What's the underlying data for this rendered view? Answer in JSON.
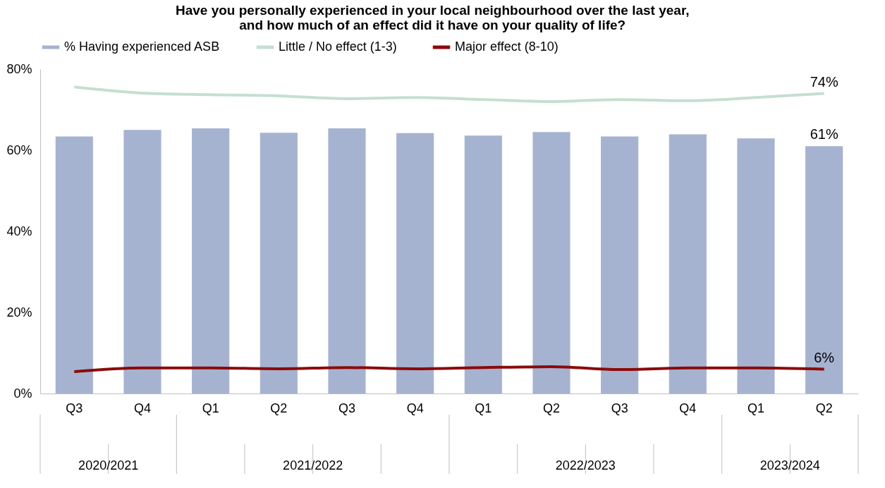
{
  "chart_data": {
    "type": "bar",
    "title": "Have you personally experienced in your local neighbourhood over the last year,\nand how much of an effect did it have on your quality of life?",
    "categories": [
      "Q3",
      "Q4",
      "Q1",
      "Q2",
      "Q3",
      "Q4",
      "Q1",
      "Q2",
      "Q3",
      "Q4",
      "Q1",
      "Q2"
    ],
    "annotations": [
      "2020/2021",
      "2021/2022",
      "2022/2023",
      "2023/2024"
    ],
    "series": [
      {
        "name": "% Having experienced ASB",
        "color": "#a6b3d0",
        "values": [
          63.4,
          65.0,
          65.4,
          64.3,
          65.4,
          64.2,
          63.6,
          64.5,
          63.4,
          63.9,
          62.9,
          61
        ],
        "value_labels": [
          null,
          null,
          null,
          null,
          null,
          null,
          null,
          null,
          null,
          null,
          null,
          "61%"
        ]
      },
      {
        "name": "Little / No effect (1-3)",
        "type": "line",
        "color": "#c5dfd0",
        "values": [
          75.6,
          74.1,
          73.7,
          73.4,
          72.7,
          73.0,
          72.5,
          72.0,
          72.5,
          72.2,
          73.0,
          74
        ],
        "value_labels": [
          null,
          null,
          null,
          null,
          null,
          null,
          null,
          null,
          null,
          null,
          null,
          "74%"
        ]
      },
      {
        "name": "Major effect (8-10)",
        "type": "line",
        "color": "#8b0a0a",
        "values": [
          5.4,
          6.3,
          6.3,
          6.1,
          6.4,
          6.1,
          6.4,
          6.6,
          5.9,
          6.3,
          6.3,
          6
        ],
        "value_labels": [
          null,
          null,
          null,
          null,
          null,
          null,
          null,
          null,
          null,
          null,
          null,
          "6%"
        ]
      }
    ],
    "ylim": [
      0,
      80
    ],
    "yticks": [
      {
        "value": 0,
        "label": "0%"
      },
      {
        "value": 20,
        "label": "20%"
      },
      {
        "value": 40,
        "label": "40%"
      },
      {
        "value": 60,
        "label": "60%"
      },
      {
        "value": 80,
        "label": "80%"
      }
    ],
    "legend": "top",
    "grid": false
  }
}
